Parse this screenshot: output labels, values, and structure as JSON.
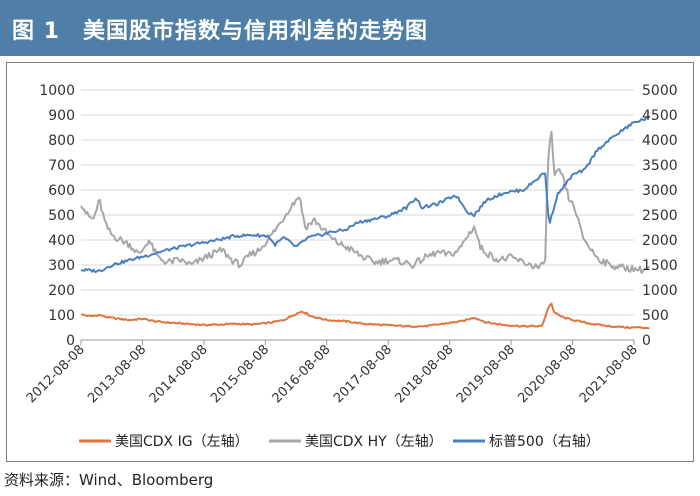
{
  "title": "图 1　美国股市指数与信用利差的走势图",
  "source": "资料来源：Wind、Bloomberg",
  "colors": {
    "title_bar": "#4f7fa6",
    "ig": "#e0743d",
    "hy": "#a6a6a6",
    "sp": "#4a7fbf",
    "grid": "#d9d9d9"
  },
  "chart_data": {
    "type": "line",
    "title": "美国股市指数与信用利差的走势图",
    "x_ticks": [
      "2012-08-08",
      "2013-08-08",
      "2014-08-08",
      "2015-08-08",
      "2016-08-08",
      "2017-08-08",
      "2018-08-08",
      "2019-08-08",
      "2020-08-08",
      "2021-08-08"
    ],
    "y_left": {
      "min": 0,
      "max": 1000,
      "ticks": [
        "0",
        "100",
        "200",
        "300",
        "400",
        "500",
        "600",
        "700",
        "800",
        "900",
        "1000"
      ]
    },
    "y_right": {
      "min": 0,
      "max": 5000,
      "ticks": [
        "0",
        "500",
        "1000",
        "1500",
        "2000",
        "2500",
        "3000",
        "3500",
        "4000",
        "4500",
        "5000"
      ]
    },
    "grid": true,
    "legend_position": "bottom",
    "series": [
      {
        "name": "美国CDX IG（左轴）",
        "axis": "left",
        "color": "#e0743d",
        "points": [
          [
            2012.6,
            102
          ],
          [
            2012.75,
            95
          ],
          [
            2012.9,
            100
          ],
          [
            2013.05,
            90
          ],
          [
            2013.2,
            85
          ],
          [
            2013.4,
            80
          ],
          [
            2013.6,
            85
          ],
          [
            2013.8,
            75
          ],
          [
            2014.0,
            70
          ],
          [
            2014.3,
            65
          ],
          [
            2014.6,
            60
          ],
          [
            2014.9,
            62
          ],
          [
            2015.1,
            65
          ],
          [
            2015.4,
            62
          ],
          [
            2015.7,
            70
          ],
          [
            2015.9,
            80
          ],
          [
            2016.1,
            105
          ],
          [
            2016.2,
            115
          ],
          [
            2016.35,
            95
          ],
          [
            2016.6,
            80
          ],
          [
            2016.9,
            75
          ],
          [
            2017.2,
            65
          ],
          [
            2017.5,
            60
          ],
          [
            2017.9,
            55
          ],
          [
            2018.2,
            55
          ],
          [
            2018.5,
            65
          ],
          [
            2018.8,
            75
          ],
          [
            2019.0,
            90
          ],
          [
            2019.2,
            70
          ],
          [
            2019.5,
            60
          ],
          [
            2019.8,
            55
          ],
          [
            2020.1,
            55
          ],
          [
            2020.2,
            125
          ],
          [
            2020.25,
            150
          ],
          [
            2020.3,
            110
          ],
          [
            2020.45,
            90
          ],
          [
            2020.7,
            75
          ],
          [
            2020.9,
            65
          ],
          [
            2021.2,
            55
          ],
          [
            2021.5,
            50
          ],
          [
            2021.7,
            50
          ],
          [
            2021.85,
            48
          ]
        ]
      },
      {
        "name": "美国CDX HY（左轴）",
        "axis": "left",
        "color": "#a6a6a6",
        "points": [
          [
            2012.6,
            550
          ],
          [
            2012.7,
            500
          ],
          [
            2012.8,
            480
          ],
          [
            2012.9,
            560
          ],
          [
            2013.0,
            460
          ],
          [
            2013.1,
            420
          ],
          [
            2013.25,
            400
          ],
          [
            2013.4,
            380
          ],
          [
            2013.55,
            340
          ],
          [
            2013.7,
            400
          ],
          [
            2013.85,
            330
          ],
          [
            2014.0,
            310
          ],
          [
            2014.2,
            320
          ],
          [
            2014.4,
            300
          ],
          [
            2014.55,
            320
          ],
          [
            2014.7,
            340
          ],
          [
            2014.9,
            360
          ],
          [
            2015.05,
            320
          ],
          [
            2015.2,
            300
          ],
          [
            2015.35,
            340
          ],
          [
            2015.5,
            360
          ],
          [
            2015.7,
            420
          ],
          [
            2015.85,
            470
          ],
          [
            2016.0,
            530
          ],
          [
            2016.1,
            560
          ],
          [
            2016.15,
            580
          ],
          [
            2016.25,
            450
          ],
          [
            2016.4,
            480
          ],
          [
            2016.55,
            440
          ],
          [
            2016.7,
            400
          ],
          [
            2016.85,
            380
          ],
          [
            2017.0,
            360
          ],
          [
            2017.2,
            330
          ],
          [
            2017.4,
            310
          ],
          [
            2017.6,
            320
          ],
          [
            2017.8,
            315
          ],
          [
            2018.0,
            300
          ],
          [
            2018.2,
            330
          ],
          [
            2018.4,
            350
          ],
          [
            2018.6,
            340
          ],
          [
            2018.75,
            360
          ],
          [
            2018.9,
            420
          ],
          [
            2019.0,
            455
          ],
          [
            2019.1,
            370
          ],
          [
            2019.25,
            340
          ],
          [
            2019.4,
            320
          ],
          [
            2019.6,
            330
          ],
          [
            2019.8,
            310
          ],
          [
            2020.05,
            290
          ],
          [
            2020.15,
            300
          ],
          [
            2020.2,
            700
          ],
          [
            2020.25,
            860
          ],
          [
            2020.3,
            650
          ],
          [
            2020.4,
            680
          ],
          [
            2020.55,
            560
          ],
          [
            2020.65,
            520
          ],
          [
            2020.75,
            420
          ],
          [
            2020.85,
            380
          ],
          [
            2021.0,
            330
          ],
          [
            2021.2,
            300
          ],
          [
            2021.4,
            290
          ],
          [
            2021.6,
            285
          ],
          [
            2021.75,
            280
          ],
          [
            2021.85,
            290
          ]
        ]
      },
      {
        "name": "标普500（右轴）",
        "axis": "right",
        "color": "#4a7fbf",
        "points": [
          [
            2012.6,
            1400
          ],
          [
            2012.9,
            1380
          ],
          [
            2013.1,
            1500
          ],
          [
            2013.4,
            1600
          ],
          [
            2013.7,
            1700
          ],
          [
            2014.0,
            1800
          ],
          [
            2014.3,
            1880
          ],
          [
            2014.6,
            1950
          ],
          [
            2014.9,
            2020
          ],
          [
            2015.1,
            2080
          ],
          [
            2015.4,
            2100
          ],
          [
            2015.65,
            2080
          ],
          [
            2015.75,
            1900
          ],
          [
            2015.9,
            2050
          ],
          [
            2016.1,
            1860
          ],
          [
            2016.3,
            2050
          ],
          [
            2016.5,
            2100
          ],
          [
            2016.7,
            2170
          ],
          [
            2016.9,
            2200
          ],
          [
            2017.1,
            2350
          ],
          [
            2017.3,
            2400
          ],
          [
            2017.6,
            2480
          ],
          [
            2017.9,
            2650
          ],
          [
            2018.05,
            2850
          ],
          [
            2018.15,
            2650
          ],
          [
            2018.4,
            2720
          ],
          [
            2018.7,
            2900
          ],
          [
            2018.9,
            2550
          ],
          [
            2019.0,
            2500
          ],
          [
            2019.2,
            2800
          ],
          [
            2019.5,
            2950
          ],
          [
            2019.8,
            3000
          ],
          [
            2020.1,
            3300
          ],
          [
            2020.15,
            3380
          ],
          [
            2020.22,
            2300
          ],
          [
            2020.35,
            2900
          ],
          [
            2020.6,
            3300
          ],
          [
            2020.8,
            3400
          ],
          [
            2021.0,
            3800
          ],
          [
            2021.3,
            4100
          ],
          [
            2021.6,
            4350
          ],
          [
            2021.85,
            4450
          ]
        ]
      }
    ]
  }
}
